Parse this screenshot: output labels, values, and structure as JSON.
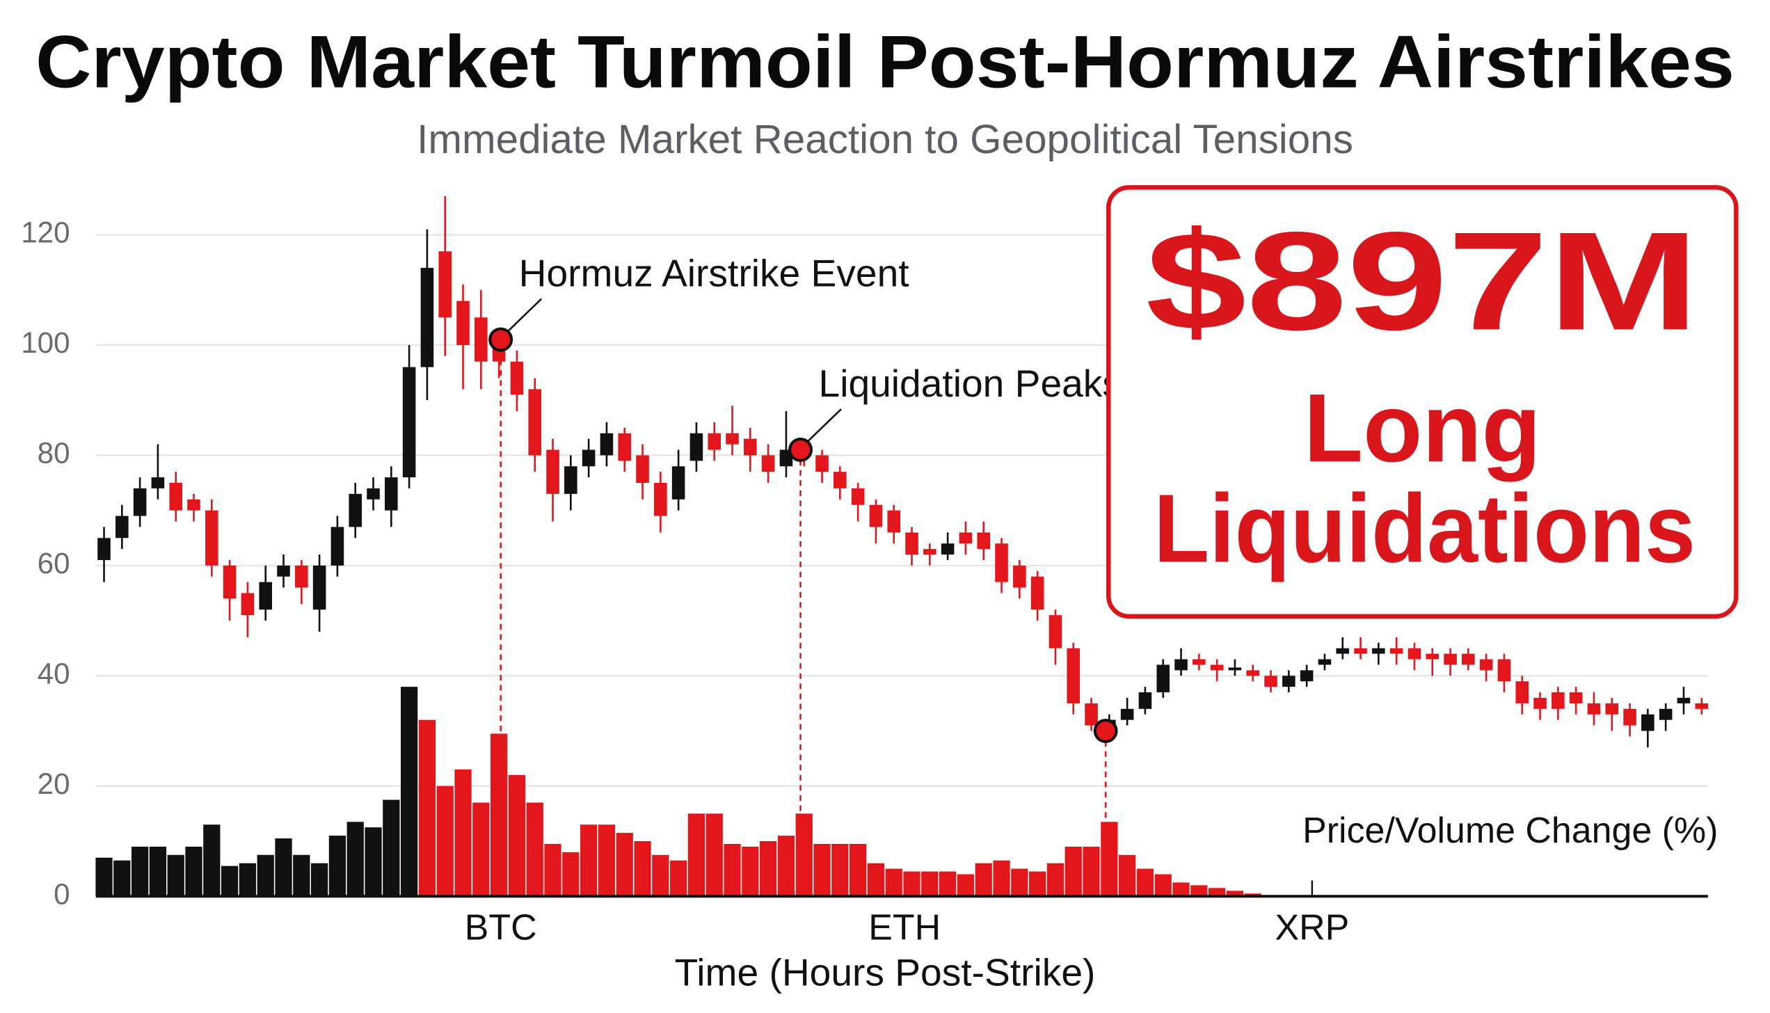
{
  "chart_data": {
    "type": "candlestick",
    "title": "Crypto Market Turmoil Post-Hormuz Airstrikes",
    "subtitle": "Immediate Market Reaction to Geopolitical Tensions",
    "x_label": "Time (Hours Post-Strike)",
    "y_label": "Price/Volume Change (%)",
    "callout": {
      "amount": "$897M",
      "line1": "Long",
      "line2": "Liquidations",
      "color": "#d9161b"
    },
    "x": [
      0,
      1,
      2,
      3,
      4,
      5,
      6,
      7,
      8,
      9,
      10,
      11,
      12,
      13,
      14,
      15,
      16,
      17,
      18,
      19,
      20,
      21,
      22,
      23,
      24,
      25,
      26,
      27,
      28,
      29,
      30,
      31,
      32,
      33,
      34,
      35,
      36,
      37,
      38,
      39,
      40,
      41,
      42,
      43,
      44,
      45,
      46,
      47,
      48,
      49,
      50,
      51,
      52,
      53,
      54,
      55,
      56,
      57,
      58,
      59,
      60,
      61,
      62,
      63,
      64,
      65,
      66,
      67,
      68,
      69,
      70,
      71,
      72,
      73,
      74,
      75,
      76,
      77,
      78,
      79,
      80,
      81,
      82,
      83,
      84,
      85,
      86,
      87,
      88,
      89
    ],
    "open": [
      61,
      65,
      69,
      74,
      75,
      72,
      70,
      60,
      55,
      52,
      58,
      60,
      52,
      60,
      67,
      72,
      70,
      76,
      96,
      117,
      108,
      105,
      101,
      97,
      92,
      81,
      73,
      78,
      80,
      84,
      80,
      75,
      72,
      79,
      84,
      84,
      83,
      80,
      78,
      81,
      80,
      77,
      74,
      71,
      70,
      66,
      63,
      62,
      66,
      66,
      64,
      60,
      58,
      51,
      45,
      35,
      31,
      32,
      34,
      37,
      41,
      43,
      42,
      41,
      41,
      40,
      38,
      39,
      42,
      44,
      45,
      44,
      45,
      45,
      44,
      44,
      44,
      43,
      43,
      39,
      36,
      37,
      37,
      35,
      35,
      34,
      30,
      32,
      35,
      35
    ],
    "high": [
      67,
      71,
      76,
      82,
      77,
      73,
      72,
      61,
      57,
      60,
      62,
      61,
      62,
      69,
      75,
      76,
      78,
      100,
      121,
      127,
      111,
      110,
      103,
      99,
      94,
      83,
      80,
      83,
      86,
      85,
      82,
      77,
      81,
      86,
      86,
      89,
      85,
      82,
      88,
      83,
      81,
      78,
      75,
      72,
      71,
      67,
      64,
      66,
      68,
      68,
      65,
      61,
      59,
      52,
      46,
      36,
      33,
      36,
      38,
      43,
      45,
      44,
      43,
      43,
      42,
      41,
      41,
      42,
      44,
      47,
      47,
      46,
      47,
      46,
      45,
      45,
      45,
      44,
      44,
      40,
      37,
      38,
      38,
      37,
      36,
      35,
      34,
      35,
      38,
      36
    ],
    "low": [
      57,
      63,
      67,
      72,
      68,
      68,
      58,
      50,
      47,
      50,
      56,
      53,
      48,
      58,
      65,
      70,
      67,
      74,
      90,
      98,
      92,
      92,
      94,
      88,
      77,
      68,
      70,
      76,
      78,
      77,
      72,
      66,
      70,
      77,
      79,
      80,
      77,
      75,
      76,
      78,
      75,
      72,
      68,
      64,
      64,
      60,
      60,
      61,
      62,
      61,
      55,
      54,
      50,
      42,
      33,
      30,
      29,
      31,
      33,
      36,
      40,
      41,
      39,
      40,
      39,
      37,
      37,
      38,
      41,
      43,
      43,
      42,
      42,
      41,
      40,
      40,
      41,
      39,
      37,
      33,
      32,
      32,
      33,
      31,
      30,
      29,
      27,
      30,
      33,
      33
    ],
    "close": [
      65,
      69,
      74,
      76,
      70,
      70,
      60,
      54,
      51,
      57,
      60,
      56,
      60,
      67,
      73,
      74,
      76,
      96,
      114,
      105,
      100,
      97,
      97,
      91,
      80,
      73,
      78,
      81,
      84,
      79,
      75,
      69,
      78,
      84,
      81,
      82,
      80,
      77,
      81,
      80,
      77,
      74,
      71,
      67,
      66,
      62,
      62,
      64,
      64,
      63,
      57,
      56,
      52,
      45,
      35,
      31,
      32,
      34,
      37,
      42,
      43,
      42,
      41,
      41.5,
      40,
      38,
      40,
      41,
      43,
      45,
      44,
      45,
      44,
      43,
      43,
      42,
      42,
      41,
      39,
      35,
      34,
      34,
      35,
      33,
      33,
      31,
      33,
      34,
      36,
      34
    ],
    "up_color": "#111111",
    "down_color": "#e3161b",
    "volume": [
      7,
      6.5,
      9,
      9,
      7.5,
      9,
      13,
      5.5,
      6,
      7.5,
      10.5,
      7.5,
      6,
      11,
      13.5,
      12.5,
      17.5,
      38,
      32,
      20,
      23,
      17,
      29.5,
      22,
      17,
      9.5,
      8,
      13,
      13,
      11.5,
      10,
      7.5,
      6.5,
      15,
      15,
      9.5,
      9,
      10,
      11,
      15,
      9.5,
      9.5,
      9.5,
      6,
      5,
      4.5,
      4.5,
      4.5,
      4,
      6,
      6.5,
      5,
      4.5,
      6,
      9,
      9,
      13.5,
      7.5,
      5,
      4,
      2.5,
      2,
      1.5,
      1,
      0.5,
      0,
      0,
      0,
      0,
      0,
      0,
      0,
      0,
      0,
      0,
      0,
      0,
      0,
      0,
      0,
      0,
      0,
      0,
      0,
      0,
      0,
      0,
      0,
      0,
      0
    ],
    "volume_colors": [
      "#111111",
      "#111111",
      "#111111",
      "#111111",
      "#111111",
      "#111111",
      "#111111",
      "#111111",
      "#111111",
      "#111111",
      "#111111",
      "#111111",
      "#111111",
      "#111111",
      "#111111",
      "#111111",
      "#111111",
      "#111111",
      "#e3161b",
      "#e3161b",
      "#e3161b",
      "#e3161b",
      "#e3161b",
      "#e3161b",
      "#e3161b",
      "#e3161b",
      "#e3161b",
      "#e3161b",
      "#e3161b",
      "#e3161b",
      "#e3161b",
      "#e3161b",
      "#e3161b",
      "#e3161b",
      "#e3161b",
      "#e3161b",
      "#e3161b",
      "#e3161b",
      "#e3161b",
      "#e3161b",
      "#e3161b",
      "#e3161b",
      "#e3161b",
      "#e3161b",
      "#e3161b",
      "#e3161b",
      "#e3161b",
      "#e3161b",
      "#e3161b",
      "#e3161b",
      "#e3161b",
      "#e3161b",
      "#e3161b",
      "#e3161b",
      "#e3161b",
      "#e3161b",
      "#e3161b",
      "#e3161b",
      "#e3161b",
      "#e3161b",
      "#e3161b",
      "#e3161b",
      "#e3161b",
      "#e3161b",
      "#e3161b",
      "#e3161b",
      "#e3161b",
      "#e3161b",
      "#e3161b",
      "#e3161b",
      "#e3161b",
      "#e3161b",
      "#e3161b",
      "#e3161b",
      "#e3161b",
      "#e3161b",
      "#e3161b",
      "#e3161b",
      "#e3161b",
      "#e3161b",
      "#e3161b",
      "#e3161b",
      "#e3161b",
      "#e3161b",
      "#e3161b",
      "#e3161b",
      "#e3161b",
      "#e3161b",
      "#e3161b",
      "#e3161b"
    ],
    "annotations": [
      {
        "x": 22.1,
        "y": 101,
        "label": "Hormuz Airstrike Event"
      },
      {
        "x": 38.8,
        "y": 81,
        "label": "Liquidation Peaks"
      },
      {
        "x": 55.8,
        "y": 30
      }
    ],
    "xlim": [
      -0.45,
      89.35
    ],
    "ylim": [
      0,
      120
    ],
    "yticks": [
      0,
      20,
      40,
      60,
      80,
      100,
      120
    ],
    "xticks": [
      {
        "value": 22.1,
        "label": "BTC"
      },
      {
        "value": 44.6,
        "label": "ETH"
      },
      {
        "value": 67.3,
        "label": "XRP"
      }
    ],
    "grid": true
  }
}
